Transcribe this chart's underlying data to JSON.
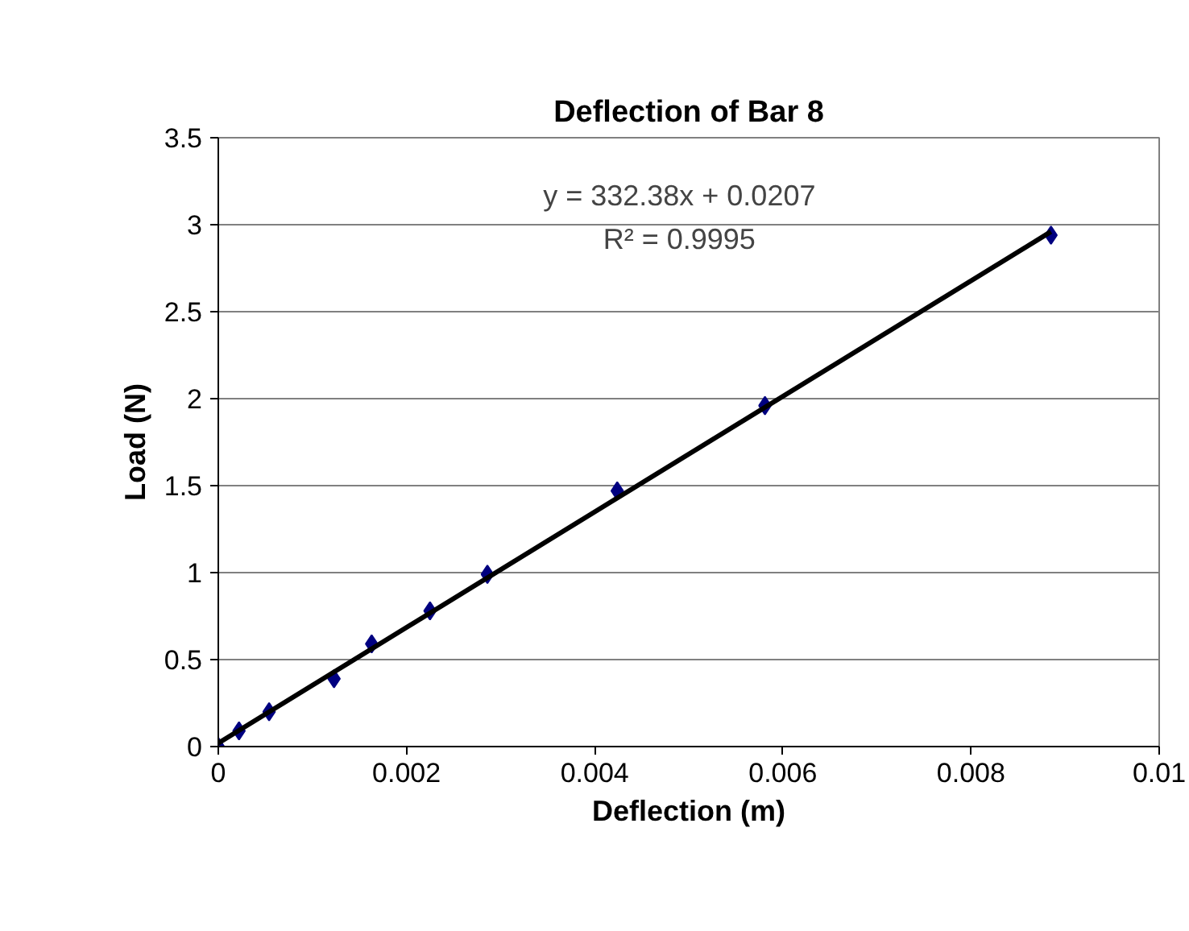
{
  "chart_data": {
    "type": "scatter",
    "title": "Deflection of Bar 8",
    "xlabel": "Deflection (m)",
    "ylabel": "Load (N)",
    "series": [
      {
        "marker": "diamond",
        "color": "#000080",
        "x": [
          0,
          0.00022,
          0.00054,
          0.00123,
          0.00163,
          0.00225,
          0.00286,
          0.00424,
          0.00581,
          0.00885
        ],
        "values": [
          0,
          0.09,
          0.2,
          0.39,
          0.59,
          0.78,
          0.99,
          1.47,
          1.96,
          2.94
        ]
      },
      {
        "type": "line",
        "line_style": "solid",
        "color": "#000000",
        "x": [
          0,
          0.00885
        ],
        "values": [
          0.02,
          2.96
        ]
      }
    ],
    "annotations": [
      "y = 332.38x + 0.0207",
      "R² = 0.9995"
    ],
    "xlim": [
      0,
      0.01
    ],
    "xticks": [
      0,
      0.002,
      0.004,
      0.006,
      0.008,
      0.01
    ],
    "ylim": [
      0,
      3.5
    ],
    "yticks": [
      0,
      0.5,
      1,
      1.5,
      2,
      2.5,
      3,
      3.5
    ],
    "grid": "y"
  }
}
